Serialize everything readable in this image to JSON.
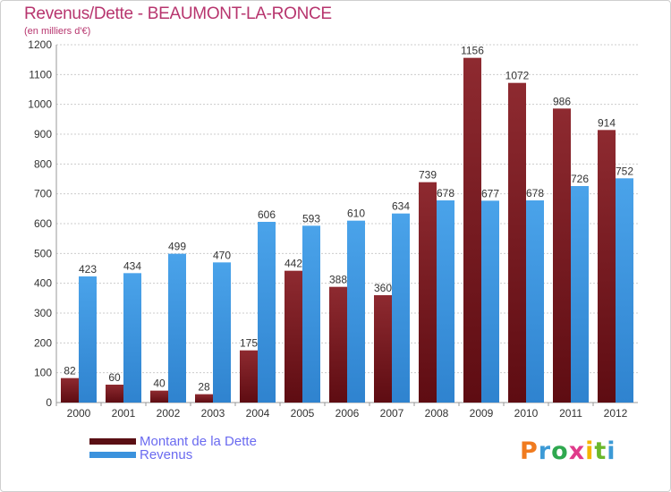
{
  "title": "Revenus/Dette - BEAUMONT-LA-RONCE",
  "subtitle": "(en milliers d'€)",
  "logo": {
    "text": "Proxiti",
    "colors": [
      "#f07b1f",
      "#3c9ad6",
      "#2fa84f",
      "#e03b8b",
      "#f5b400",
      "#6bb82c",
      "#3c9ad6"
    ]
  },
  "colors": {
    "dette": "#7b1b21",
    "revenus": "#3b92dd",
    "grid": "#cccccc",
    "text": "#333333"
  },
  "chart_data": {
    "type": "bar",
    "categories": [
      "2000",
      "2001",
      "2002",
      "2003",
      "2004",
      "2005",
      "2006",
      "2007",
      "2008",
      "2009",
      "2010",
      "2011",
      "2012"
    ],
    "series": [
      {
        "name": "Montant de la Dette",
        "values": [
          82,
          60,
          40,
          28,
          175,
          442,
          388,
          360,
          739,
          1156,
          1072,
          986,
          914
        ]
      },
      {
        "name": "Revenus",
        "values": [
          423,
          434,
          499,
          470,
          606,
          593,
          610,
          634,
          678,
          677,
          678,
          726,
          752
        ]
      }
    ],
    "ylim": [
      0,
      1200
    ],
    "yticks": [
      0,
      100,
      200,
      300,
      400,
      500,
      600,
      700,
      800,
      900,
      1000,
      1100,
      1200
    ],
    "grid": true,
    "legend": "bottom-left"
  }
}
